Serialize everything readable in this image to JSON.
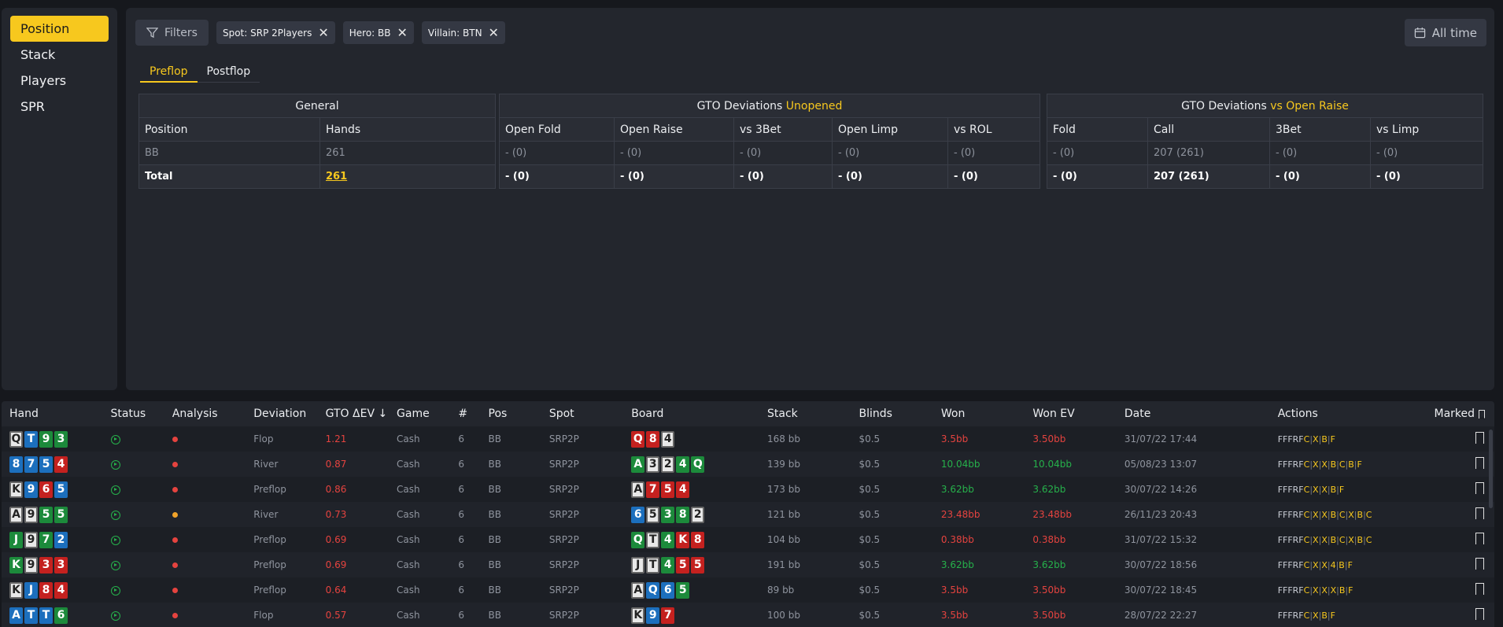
{
  "sidebar": {
    "items": [
      {
        "label": "Position",
        "active": true
      },
      {
        "label": "Stack"
      },
      {
        "label": "Players"
      },
      {
        "label": "SPR"
      }
    ]
  },
  "filters": {
    "button_label": "Filters",
    "chips": [
      "Spot: SRP 2Players",
      "Hero: BB",
      "Villain: BTN"
    ],
    "date_button": "All time"
  },
  "tabs": [
    "Preflop",
    "Postflop"
  ],
  "general": {
    "title": "General",
    "columns": [
      "Position",
      "Hands"
    ],
    "rows": [
      [
        "BB",
        "261"
      ]
    ],
    "total": [
      "Total",
      "261"
    ]
  },
  "unopened": {
    "title": "GTO Deviations",
    "title_hl": "Unopened",
    "columns": [
      "Open Fold",
      "Open Raise",
      "vs 3Bet",
      "Open Limp",
      "vs ROL"
    ],
    "rows": [
      [
        "- (0)",
        "- (0)",
        "- (0)",
        "- (0)",
        "- (0)"
      ]
    ],
    "total": [
      "- (0)",
      "- (0)",
      "- (0)",
      "- (0)",
      "- (0)"
    ]
  },
  "vsraise": {
    "title": "GTO Deviations",
    "title_hl": "vs Open Raise",
    "columns": [
      "Fold",
      "Call",
      "3Bet",
      "vs Limp"
    ],
    "rows": [
      [
        "- (0)",
        "207 (261)",
        "- (0)",
        "- (0)"
      ]
    ],
    "total": [
      "- (0)",
      "207 (261)",
      "- (0)",
      "- (0)"
    ]
  },
  "hands_table": {
    "columns": [
      "Hand",
      "Status",
      "Analysis",
      "Deviation",
      "GTO ΔEV ↓",
      "Game",
      "#",
      "Pos",
      "Spot",
      "Board",
      "Stack",
      "Blinds",
      "Won",
      "Won EV",
      "Date",
      "Actions",
      "Marked"
    ],
    "rows": [
      {
        "hand": [
          [
            "Q",
            "s"
          ],
          [
            "T",
            "d"
          ],
          [
            "9",
            "c"
          ],
          [
            "3",
            "c"
          ]
        ],
        "analysis": "red",
        "deviation": "Flop",
        "ev": "1.21",
        "game": "Cash",
        "n": "6",
        "pos": "BB",
        "spot": "SRP2P",
        "board": [
          [
            "Q",
            "h"
          ],
          [
            "8",
            "h"
          ],
          [
            "4",
            "s"
          ]
        ],
        "stack": "168 bb",
        "blinds": "$0.5",
        "won": "3.5bb",
        "wonev": "3.50bb",
        "sign": "neg",
        "date": "31/07/22 17:44",
        "actions": "FFFRF|C|X|B|F"
      },
      {
        "hand": [
          [
            "8",
            "d"
          ],
          [
            "7",
            "d"
          ],
          [
            "5",
            "d"
          ],
          [
            "4",
            "h"
          ]
        ],
        "analysis": "red",
        "deviation": "River",
        "ev": "0.87",
        "game": "Cash",
        "n": "6",
        "pos": "BB",
        "spot": "SRP2P",
        "board": [
          [
            "A",
            "c"
          ],
          [
            "3",
            "s"
          ],
          [
            "2",
            "s"
          ],
          [
            "4",
            "c"
          ],
          [
            "Q",
            "c"
          ]
        ],
        "stack": "139 bb",
        "blinds": "$0.5",
        "won": "10.04bb",
        "wonev": "10.04bb",
        "sign": "pos",
        "date": "05/08/23 13:07",
        "actions": "FFFRF|C|X|X|B|C|B|F"
      },
      {
        "hand": [
          [
            "K",
            "s"
          ],
          [
            "9",
            "d"
          ],
          [
            "6",
            "h"
          ],
          [
            "5",
            "d"
          ]
        ],
        "analysis": "red",
        "deviation": "Preflop",
        "ev": "0.86",
        "game": "Cash",
        "n": "6",
        "pos": "BB",
        "spot": "SRP2P",
        "board": [
          [
            "A",
            "s"
          ],
          [
            "7",
            "h"
          ],
          [
            "5",
            "h"
          ],
          [
            "4",
            "h"
          ]
        ],
        "stack": "173 bb",
        "blinds": "$0.5",
        "won": "3.62bb",
        "wonev": "3.62bb",
        "sign": "pos",
        "date": "30/07/22 14:26",
        "actions": "FFFRF|C|X|X|B|F"
      },
      {
        "hand": [
          [
            "A",
            "s"
          ],
          [
            "9",
            "s"
          ],
          [
            "5",
            "c"
          ],
          [
            "5",
            "c"
          ]
        ],
        "analysis": "orange",
        "deviation": "River",
        "ev": "0.73",
        "game": "Cash",
        "n": "6",
        "pos": "BB",
        "spot": "SRP2P",
        "board": [
          [
            "6",
            "d"
          ],
          [
            "5",
            "s"
          ],
          [
            "3",
            "c"
          ],
          [
            "8",
            "c"
          ],
          [
            "2",
            "s"
          ]
        ],
        "stack": "121 bb",
        "blinds": "$0.5",
        "won": "23.48bb",
        "wonev": "23.48bb",
        "sign": "neg",
        "date": "26/11/23 20:43",
        "actions": "FFFRF|C|X|X|B|C|X|B|C"
      },
      {
        "hand": [
          [
            "J",
            "c"
          ],
          [
            "9",
            "s"
          ],
          [
            "7",
            "c"
          ],
          [
            "2",
            "d"
          ]
        ],
        "analysis": "red",
        "deviation": "Preflop",
        "ev": "0.69",
        "game": "Cash",
        "n": "6",
        "pos": "BB",
        "spot": "SRP2P",
        "board": [
          [
            "Q",
            "c"
          ],
          [
            "T",
            "s"
          ],
          [
            "4",
            "c"
          ],
          [
            "K",
            "h"
          ],
          [
            "8",
            "h"
          ]
        ],
        "stack": "104 bb",
        "blinds": "$0.5",
        "won": "0.38bb",
        "wonev": "0.38bb",
        "sign": "neg",
        "date": "31/07/22 15:32",
        "actions": "FFFRF|C|X|X|B|C|X|B|C"
      },
      {
        "hand": [
          [
            "K",
            "c"
          ],
          [
            "9",
            "s"
          ],
          [
            "3",
            "h"
          ],
          [
            "3",
            "h"
          ]
        ],
        "analysis": "red",
        "deviation": "Preflop",
        "ev": "0.69",
        "game": "Cash",
        "n": "6",
        "pos": "BB",
        "spot": "SRP2P",
        "board": [
          [
            "J",
            "s"
          ],
          [
            "T",
            "s"
          ],
          [
            "4",
            "c"
          ],
          [
            "5",
            "h"
          ],
          [
            "5",
            "h"
          ]
        ],
        "stack": "191 bb",
        "blinds": "$0.5",
        "won": "3.62bb",
        "wonev": "3.62bb",
        "sign": "pos",
        "date": "30/07/22 18:56",
        "actions": "FFFRF|C|X|X|4|B|F"
      },
      {
        "hand": [
          [
            "K",
            "s"
          ],
          [
            "J",
            "d"
          ],
          [
            "8",
            "h"
          ],
          [
            "4",
            "h"
          ]
        ],
        "analysis": "red",
        "deviation": "Preflop",
        "ev": "0.64",
        "game": "Cash",
        "n": "6",
        "pos": "BB",
        "spot": "SRP2P",
        "board": [
          [
            "A",
            "s"
          ],
          [
            "Q",
            "d"
          ],
          [
            "6",
            "d"
          ],
          [
            "5",
            "c"
          ]
        ],
        "stack": "89 bb",
        "blinds": "$0.5",
        "won": "3.5bb",
        "wonev": "3.50bb",
        "sign": "neg",
        "date": "30/07/22 18:45",
        "actions": "FFFRF|C|X|X|X|B|F"
      },
      {
        "hand": [
          [
            "A",
            "d"
          ],
          [
            "T",
            "d"
          ],
          [
            "T",
            "d"
          ],
          [
            "6",
            "c"
          ]
        ],
        "analysis": "red",
        "deviation": "Flop",
        "ev": "0.57",
        "game": "Cash",
        "n": "6",
        "pos": "BB",
        "spot": "SRP2P",
        "board": [
          [
            "K",
            "s"
          ],
          [
            "9",
            "d"
          ],
          [
            "7",
            "h"
          ]
        ],
        "stack": "100 bb",
        "blinds": "$0.5",
        "won": "3.5bb",
        "wonev": "3.50bb",
        "sign": "neg",
        "date": "28/07/22 22:27",
        "actions": "FFFRF|C|X|B|F"
      }
    ]
  },
  "colors": {
    "accent": "#f7c81e",
    "negative": "#e5433f",
    "positive": "#26b14b"
  }
}
